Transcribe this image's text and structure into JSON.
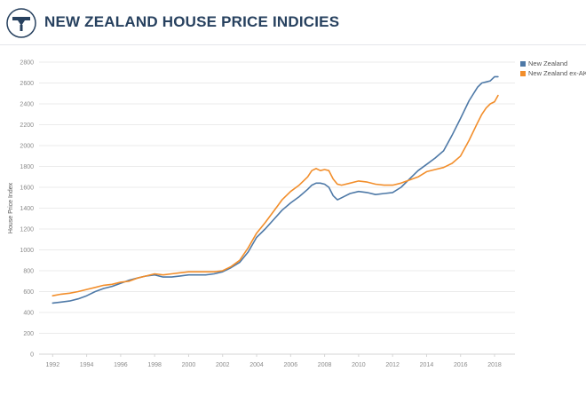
{
  "page": {
    "title": "NEW ZEALAND HOUSE PRICE INDICIES",
    "logo_icon": "house-price-logo-icon"
  },
  "colors": {
    "title": "#27415f",
    "series_nz": "#4e79a7",
    "series_exak": "#f28e2b",
    "gridline": "#ebebeb"
  },
  "chart_data": {
    "type": "line",
    "title": "NEW ZEALAND HOUSE PRICE INDICIES",
    "xlabel": "",
    "ylabel": "House Price Index",
    "xlim": [
      1991.2,
      2019.2
    ],
    "ylim": [
      0,
      2800
    ],
    "yticks": [
      0,
      200,
      400,
      600,
      800,
      1000,
      1200,
      1400,
      1600,
      1800,
      2000,
      2200,
      2400,
      2600,
      2800
    ],
    "xticks": [
      1992,
      1994,
      1996,
      1998,
      2000,
      2002,
      2004,
      2006,
      2008,
      2010,
      2012,
      2014,
      2016,
      2018
    ],
    "grid": true,
    "legend_position": "top-right",
    "series": [
      {
        "name": "New Zealand",
        "color": "#4e79a7",
        "x": [
          1992,
          1992.5,
          1993,
          1993.5,
          1994,
          1994.5,
          1995,
          1995.5,
          1996,
          1996.5,
          1997,
          1997.5,
          1998,
          1998.5,
          1999,
          1999.5,
          2000,
          2000.5,
          2001,
          2001.5,
          2002,
          2002.5,
          2003,
          2003.5,
          2004,
          2004.5,
          2005,
          2005.5,
          2006,
          2006.5,
          2007,
          2007.25,
          2007.5,
          2007.75,
          2008,
          2008.25,
          2008.5,
          2008.75,
          2009,
          2009.5,
          2010,
          2010.5,
          2011,
          2011.5,
          2012,
          2012.5,
          2013,
          2013.5,
          2014,
          2014.5,
          2015,
          2015.5,
          2016,
          2016.5,
          2017,
          2017.25,
          2017.5,
          2017.75,
          2018,
          2018.2
        ],
        "values": [
          490,
          500,
          510,
          530,
          560,
          600,
          630,
          650,
          680,
          710,
          730,
          750,
          760,
          740,
          740,
          750,
          760,
          760,
          760,
          770,
          790,
          830,
          880,
          980,
          1120,
          1200,
          1290,
          1380,
          1450,
          1510,
          1580,
          1620,
          1640,
          1640,
          1630,
          1600,
          1520,
          1480,
          1500,
          1540,
          1560,
          1550,
          1530,
          1540,
          1550,
          1600,
          1680,
          1760,
          1820,
          1880,
          1950,
          2100,
          2260,
          2430,
          2560,
          2600,
          2610,
          2620,
          2660,
          2660
        ]
      },
      {
        "name": "New Zealand ex-AK",
        "color": "#f28e2b",
        "x": [
          1992,
          1992.5,
          1993,
          1993.5,
          1994,
          1994.5,
          1995,
          1995.5,
          1996,
          1996.5,
          1997,
          1997.5,
          1998,
          1998.5,
          1999,
          1999.5,
          2000,
          2000.5,
          2001,
          2001.5,
          2002,
          2002.5,
          2003,
          2003.5,
          2004,
          2004.5,
          2005,
          2005.5,
          2006,
          2006.5,
          2007,
          2007.25,
          2007.5,
          2007.75,
          2008,
          2008.25,
          2008.5,
          2008.75,
          2009,
          2009.5,
          2010,
          2010.5,
          2011,
          2011.5,
          2012,
          2012.5,
          2013,
          2013.5,
          2014,
          2014.5,
          2015,
          2015.5,
          2016,
          2016.5,
          2017,
          2017.25,
          2017.5,
          2017.75,
          2018,
          2018.2
        ],
        "values": [
          560,
          575,
          585,
          600,
          620,
          640,
          660,
          670,
          690,
          700,
          730,
          750,
          770,
          760,
          770,
          780,
          790,
          790,
          790,
          790,
          800,
          840,
          900,
          1020,
          1160,
          1260,
          1370,
          1480,
          1560,
          1620,
          1700,
          1760,
          1780,
          1760,
          1770,
          1760,
          1680,
          1630,
          1620,
          1640,
          1660,
          1650,
          1630,
          1620,
          1620,
          1640,
          1670,
          1700,
          1750,
          1770,
          1790,
          1830,
          1900,
          2050,
          2220,
          2300,
          2360,
          2400,
          2420,
          2480
        ]
      }
    ]
  }
}
